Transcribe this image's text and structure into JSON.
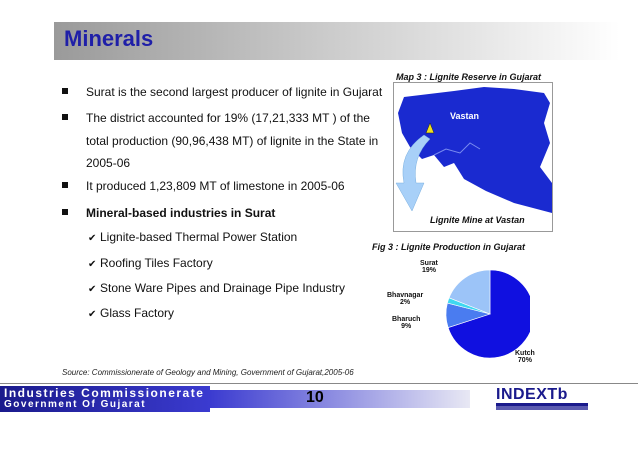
{
  "title": "Minerals",
  "bullets": [
    "Surat is the second largest producer of lignite in Gujarat",
    "The district accounted for 19% (17,21,333 MT ) of the",
    "total production (90,96,438 MT) of lignite in the State in",
    "2005-06",
    "It produced 1,23,809 MT of limestone in 2005-06",
    "Mineral-based industries in Surat"
  ],
  "sub_items": [
    "Lignite-based  Thermal Power Station",
    "Roofing Tiles Factory",
    "Stone Ware Pipes and Drainage Pipe Industry",
    "Glass Factory"
  ],
  "source": "Source: Commissionerate of Geology and Mining, Government of Gujarat,2005-06",
  "map": {
    "caption": "Map 3 : Lignite Reserve in Gujarat",
    "label_vastan": "Vastan",
    "label_mine": "Lignite Mine at Vastan"
  },
  "figure_caption": "Fig 3 : Lignite Production in Gujarat",
  "chart_data": {
    "type": "pie",
    "title": "Fig 3 : Lignite Production in Gujarat",
    "slices": [
      {
        "label": "Kutch",
        "value": 70,
        "pct_text": "70%",
        "color": "#1010e0"
      },
      {
        "label": "Bharuch",
        "value": 9,
        "pct_text": "9%",
        "color": "#4a7cf0"
      },
      {
        "label": "Bhavnagar",
        "value": 2,
        "pct_text": "2%",
        "color": "#40d8f0"
      },
      {
        "label": "Surat",
        "value": 19,
        "pct_text": "19%",
        "color": "#9cc4f8"
      }
    ]
  },
  "footer": {
    "org_line1": "Industries Commissionerate",
    "org_line2": "Government Of Gujarat",
    "page_number": "10",
    "logo_text": "INDEXTb"
  },
  "colors": {
    "title": "#1f1fa8",
    "footer_blue": "#1a1a8c",
    "map_blue": "#1a2ad0"
  }
}
